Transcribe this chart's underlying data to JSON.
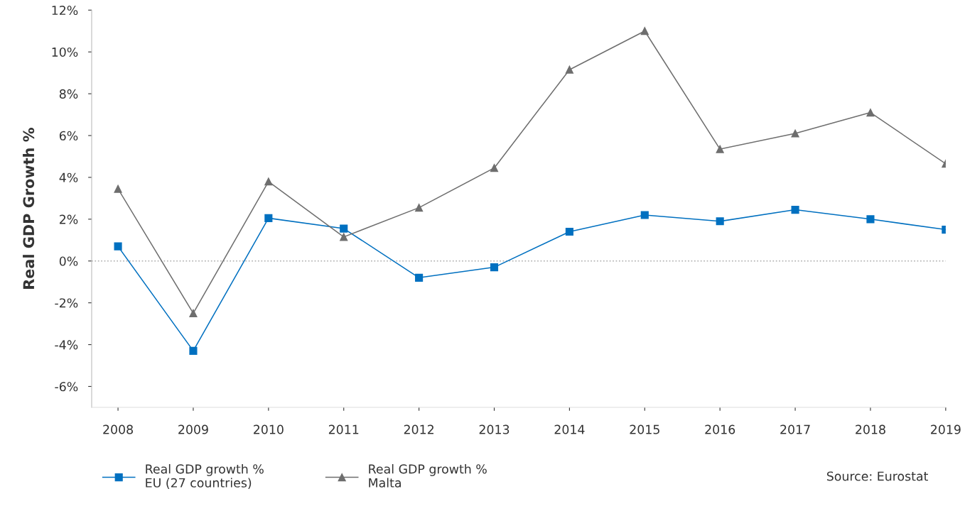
{
  "chart_data": {
    "type": "line",
    "ylabel": "Real GDP Growth %",
    "categories": [
      "2008",
      "2009",
      "2010",
      "2011",
      "2012",
      "2013",
      "2014",
      "2015",
      "2016",
      "2017",
      "2018",
      "2019"
    ],
    "series": [
      {
        "name": "Real GDP growth %\nEU (27 countries)",
        "color": "#0070c0",
        "marker": "square",
        "values": [
          0.7,
          -4.3,
          2.05,
          1.55,
          -0.8,
          -0.3,
          1.4,
          2.2,
          1.9,
          2.45,
          2.0,
          1.5
        ]
      },
      {
        "name": "Real GDP growth %\nMalta",
        "color": "#6e6e6e",
        "marker": "triangle",
        "values": [
          3.45,
          -2.5,
          3.8,
          1.15,
          2.55,
          4.45,
          9.15,
          11.0,
          5.35,
          6.1,
          7.1,
          4.65
        ]
      }
    ],
    "ylim": [
      -7,
      12
    ],
    "yticks": [
      {
        "value": -6,
        "label": "-6%"
      },
      {
        "value": -4,
        "label": "-4%"
      },
      {
        "value": -2,
        "label": "-2%"
      },
      {
        "value": 0,
        "label": "0%"
      },
      {
        "value": 2,
        "label": "2%"
      },
      {
        "value": 4,
        "label": "4%"
      },
      {
        "value": 6,
        "label": "6%"
      },
      {
        "value": 8,
        "label": "8%"
      },
      {
        "value": 10,
        "label": "10%"
      },
      {
        "value": 12,
        "label": "12%"
      }
    ],
    "ref_lines": [
      {
        "axis": "y",
        "value": 0,
        "color": "#aaaaaa",
        "line_style": "dotted"
      }
    ],
    "grid": false,
    "legend": "bottom left",
    "line_style": "solid",
    "annotations": [
      "Source: Eurostat"
    ]
  }
}
